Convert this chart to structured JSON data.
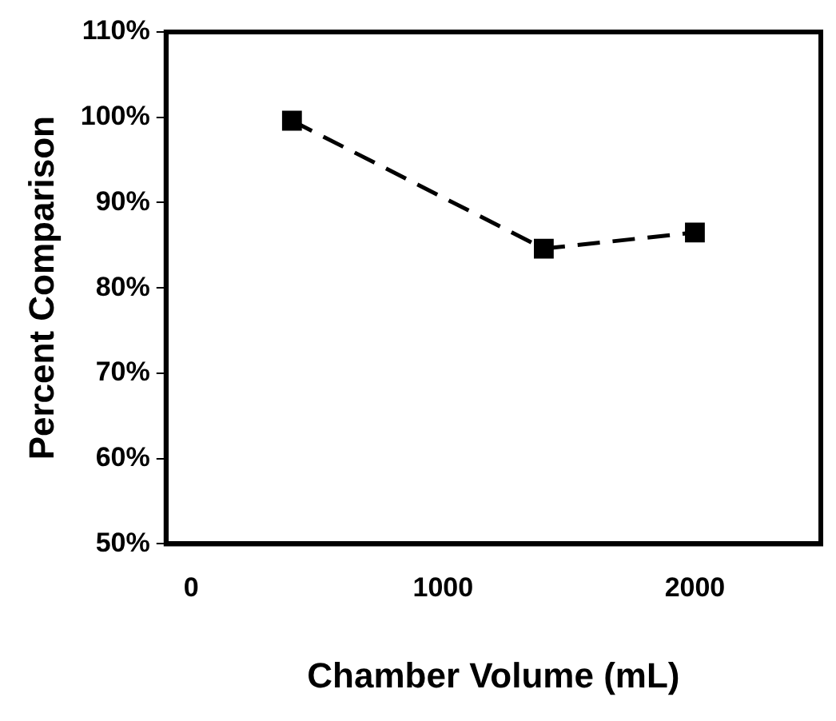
{
  "chart_data": {
    "type": "line",
    "xlabel": "Chamber Volume (mL)",
    "ylabel": "Percent Comparison",
    "x": [
      400,
      1400,
      2000
    ],
    "series": [
      {
        "color": "#000000",
        "values": [
          99.6,
          84.6,
          86.5
        ]
      }
    ],
    "xlim": [
      -100,
      2500
    ],
    "xticks": [
      0,
      1000,
      2000
    ],
    "ylim": [
      50,
      110
    ],
    "yticks": [
      {
        "value": 50,
        "label": "50%"
      },
      {
        "value": 60,
        "label": "60%"
      },
      {
        "value": 70,
        "label": "70%"
      },
      {
        "value": 80,
        "label": "80%"
      },
      {
        "value": 90,
        "label": "90%"
      },
      {
        "value": 100,
        "label": "100%"
      },
      {
        "value": 110,
        "label": "110%"
      }
    ],
    "marker": "square",
    "line_style": "dashed",
    "grid": false,
    "legend": false
  }
}
